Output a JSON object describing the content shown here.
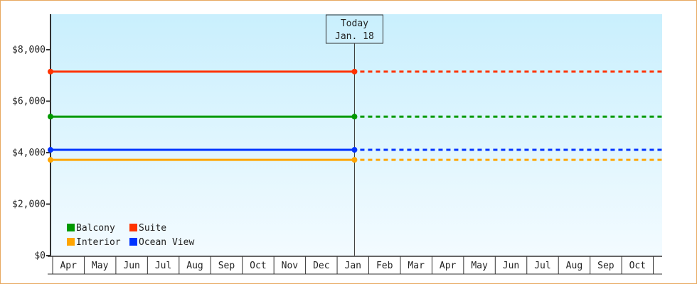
{
  "chart_data": {
    "type": "line",
    "title": "",
    "xlabel": "",
    "ylabel": "",
    "ylim": [
      0,
      9380
    ],
    "y_ticks": [
      0,
      2000,
      4000,
      6000,
      8000
    ],
    "y_tick_labels": [
      "$0",
      "$2,000",
      "$4,000",
      "$6,000",
      "$8,000"
    ],
    "x_tick_labels": [
      "Apr",
      "May",
      "Jun",
      "Jul",
      "Aug",
      "Sep",
      "Oct",
      "Nov",
      "Dec",
      "Jan",
      "Feb",
      "Mar",
      "Apr",
      "May",
      "Jun",
      "Jul",
      "Aug",
      "Sep",
      "Oct"
    ],
    "grid": false,
    "legend_placement": "bottom-left",
    "today_marker": {
      "label": "Today",
      "date": "Jan. 18"
    },
    "x_points": [
      "Apr",
      "Jan. 18"
    ],
    "projection": "dashed after today, flat to end of axis",
    "series": [
      {
        "name": "Balcony",
        "color": "#009900",
        "values": [
          5400,
          5400
        ]
      },
      {
        "name": "Suite",
        "color": "#ff3300",
        "values": [
          7150,
          7150
        ]
      },
      {
        "name": "Interior",
        "color": "#ffa500",
        "values": [
          3720,
          3720
        ]
      },
      {
        "name": "Ocean View",
        "color": "#0033ff",
        "values": [
          4110,
          4110
        ]
      }
    ],
    "background_gradient": [
      "#c9effd",
      "#f3fbff"
    ]
  }
}
